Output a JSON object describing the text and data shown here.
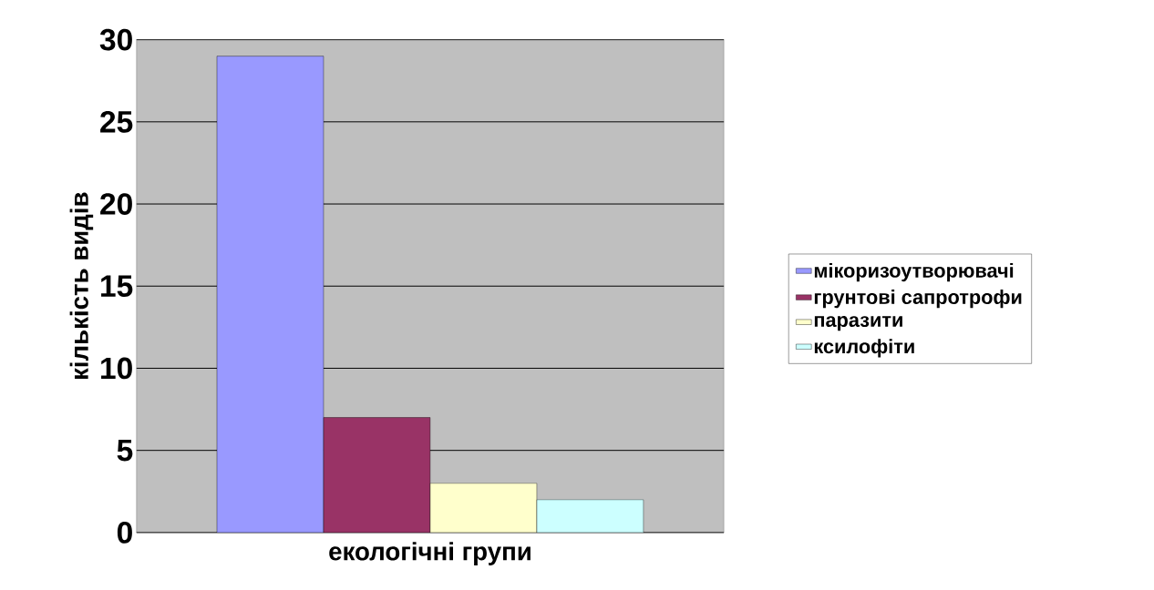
{
  "chart_data": {
    "type": "bar",
    "xlabel": "екологічні групи",
    "ylabel": "кількість видів",
    "categories": [
      null
    ],
    "series": [
      {
        "name": "мікоризоутворювачі",
        "color": "#9999ff",
        "values": [
          29
        ]
      },
      {
        "name": "грунтові сапротрофи",
        "color": "#993366",
        "values": [
          7
        ]
      },
      {
        "name": "паразити",
        "color": "#ffffcc",
        "values": [
          3
        ]
      },
      {
        "name": "ксилофіти",
        "color": "#ccffff",
        "values": [
          2
        ]
      }
    ],
    "ylim": [
      0,
      30
    ],
    "yticks": [
      0,
      5,
      10,
      15,
      20,
      25,
      30
    ],
    "grid": "y",
    "legend": "right"
  }
}
